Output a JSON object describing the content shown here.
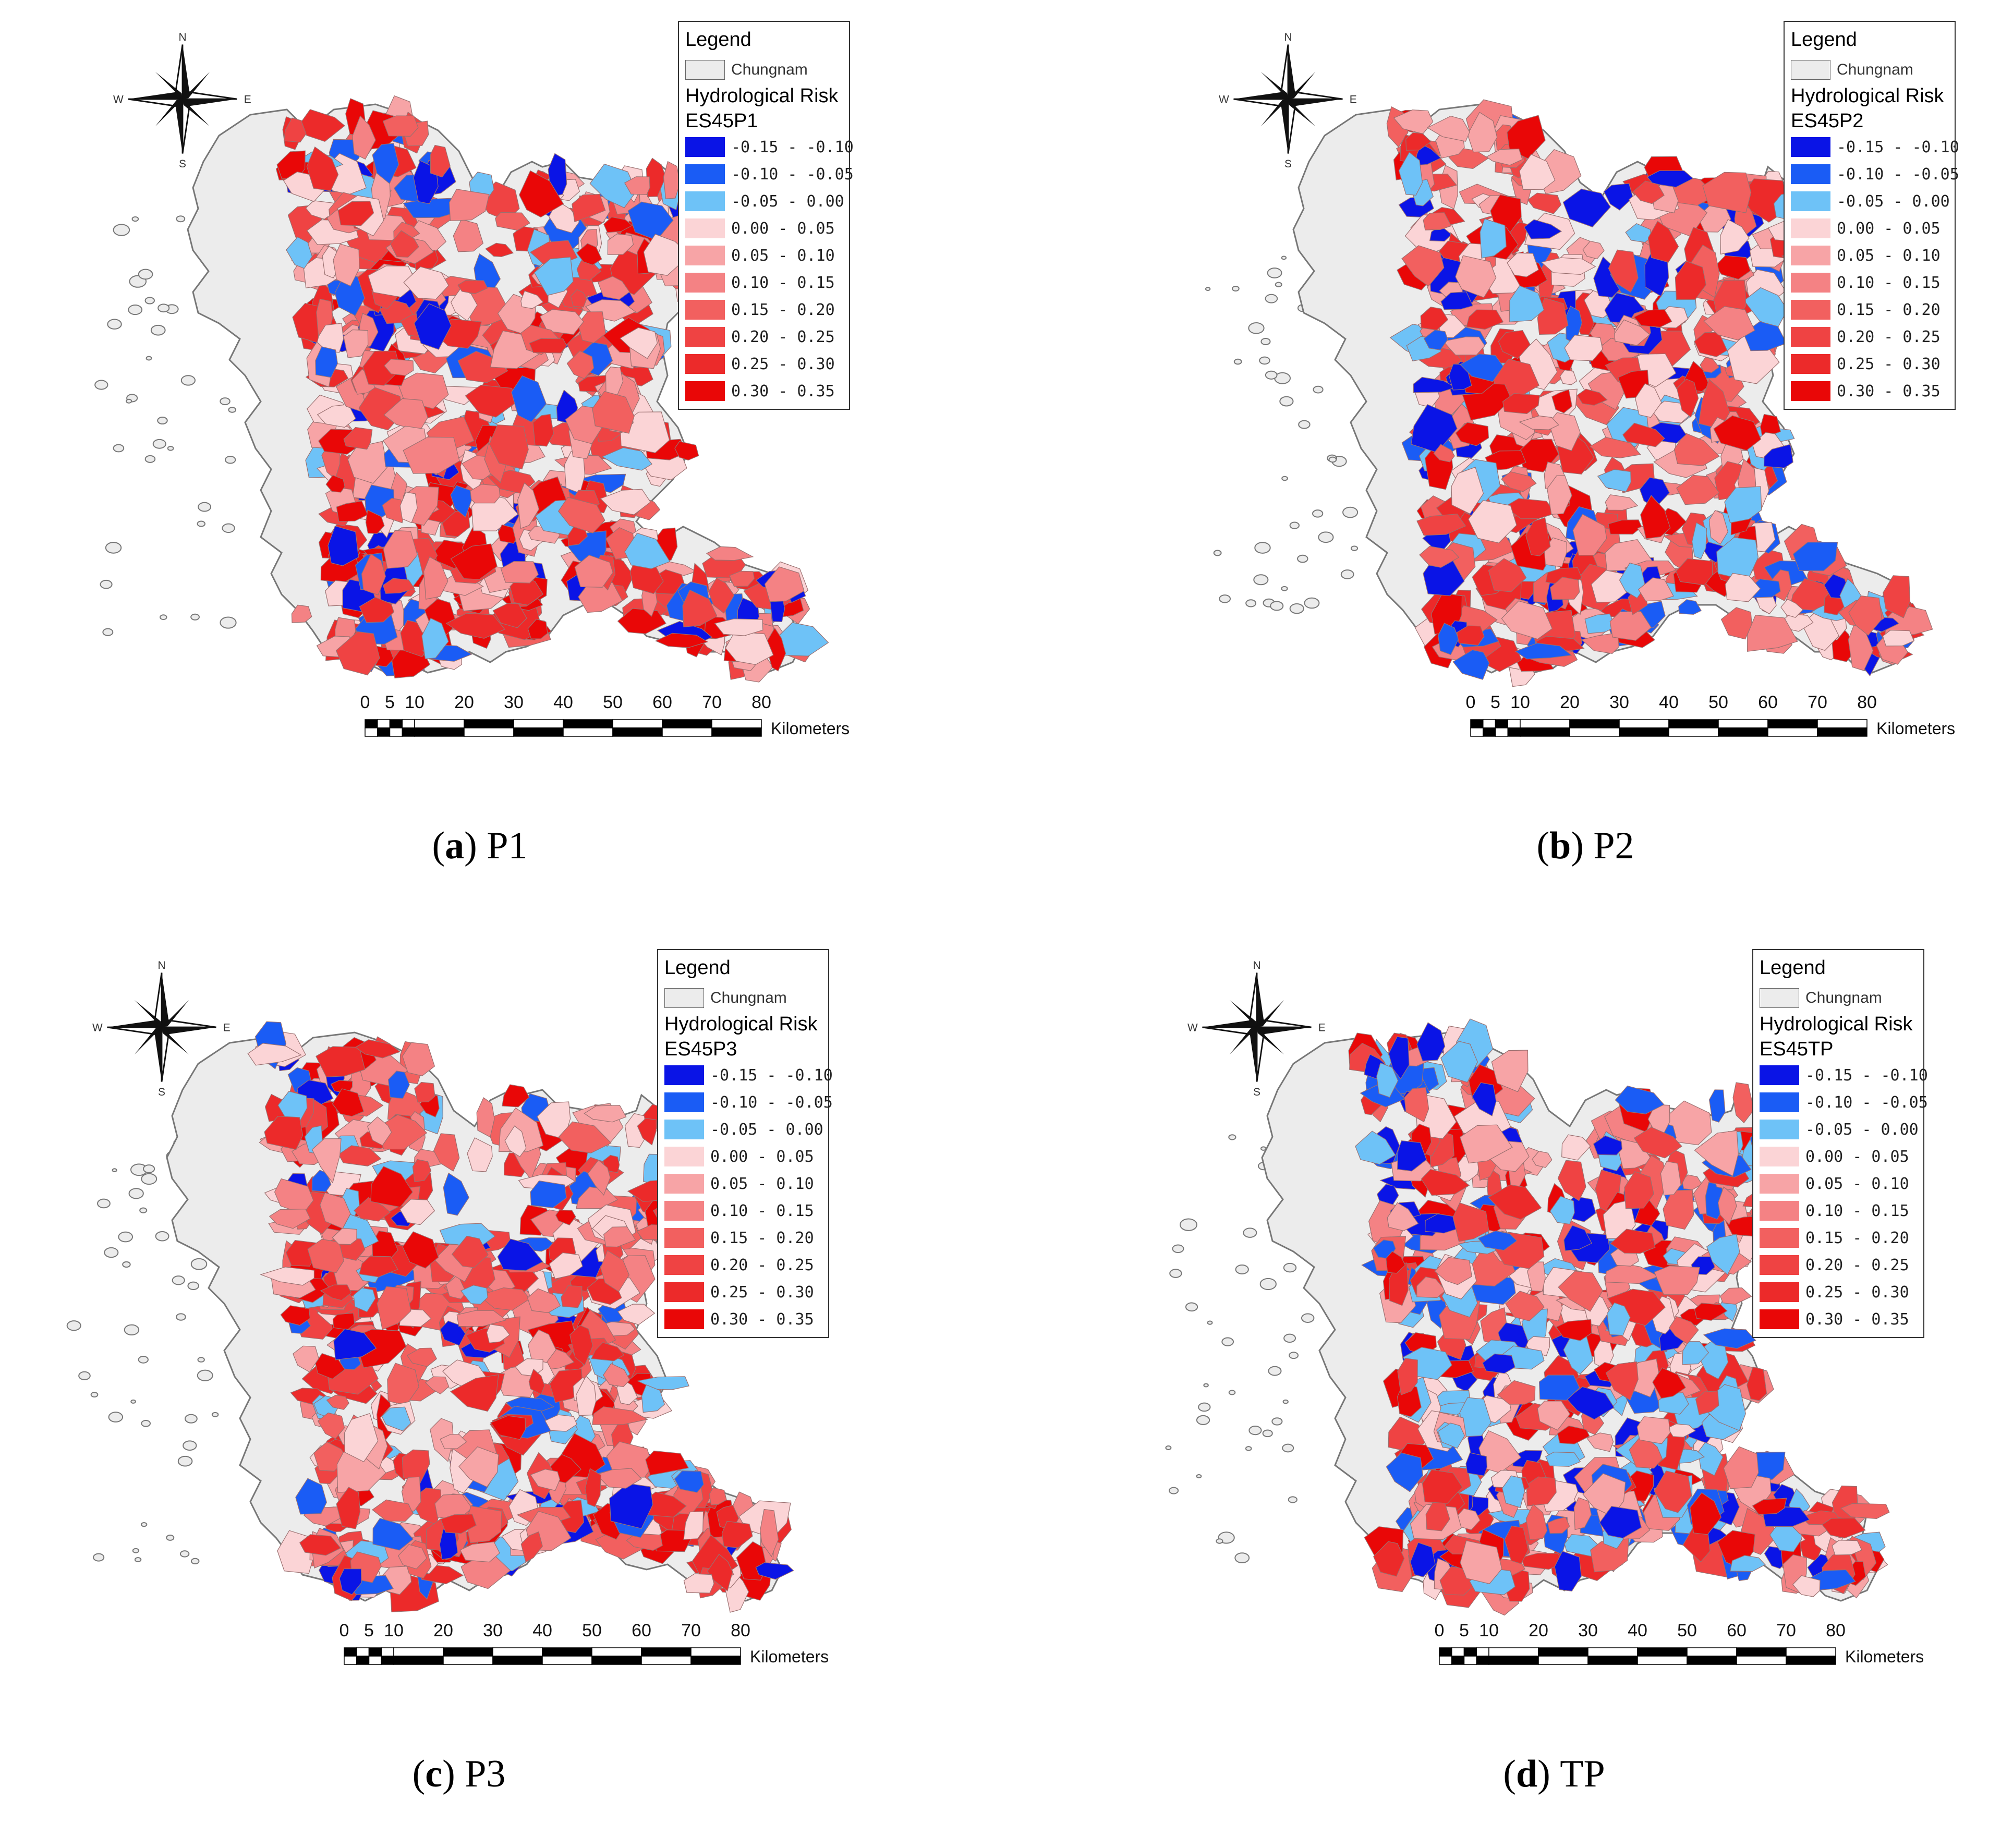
{
  "legend_header": "Legend",
  "base_layer_label": "Chungnam",
  "risk_label": "Hydrological Risk",
  "compass": {
    "n": "N",
    "s": "S",
    "e": "E",
    "w": "W"
  },
  "scale_ticks": [
    "0",
    "5",
    "10",
    "20",
    "30",
    "40",
    "50",
    "60",
    "70",
    "80"
  ],
  "scale_unit": "Kilometers",
  "classes": [
    {
      "label": "-0.15 - -0.10",
      "color": "#0a14e6"
    },
    {
      "label": "-0.10 - -0.05",
      "color": "#1a5cf5"
    },
    {
      "label": "-0.05 - 0.00",
      "color": "#6ec2f7"
    },
    {
      "label": "0.00 - 0.05",
      "color": "#fbd4d6"
    },
    {
      "label": "0.05 - 0.10",
      "color": "#f7a4a6"
    },
    {
      "label": "0.10 - 0.15",
      "color": "#f48284"
    },
    {
      "label": "0.15 - 0.20",
      "color": "#f2605f"
    },
    {
      "label": "0.20 - 0.25",
      "color": "#ef4343"
    },
    {
      "label": "0.25 - 0.30",
      "color": "#ec2a2a"
    },
    {
      "label": "0.30 - 0.35",
      "color": "#e90707"
    }
  ],
  "base_color": "#ececec",
  "panels": [
    {
      "layer": "ES45P1",
      "caption_letter": "a",
      "caption_name": "P1"
    },
    {
      "layer": "ES45P2",
      "caption_letter": "b",
      "caption_name": "P2"
    },
    {
      "layer": "ES45P3",
      "caption_letter": "c",
      "caption_name": "P3"
    },
    {
      "layer": "ES45TP",
      "caption_letter": "d",
      "caption_name": "TP"
    }
  ]
}
